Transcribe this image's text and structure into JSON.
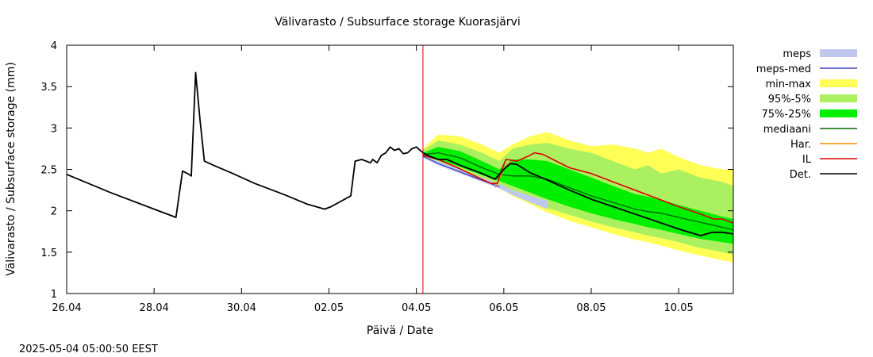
{
  "chart_data": {
    "type": "area",
    "title": "Välivarasto / Subsurface storage  Kuorasjärvi",
    "xlabel": "Päivä / Date",
    "ylabel": "Välivarasto / Subsurface storage (mm)",
    "timestamp": "2025-05-04  05:00:50 EEST",
    "x_unit": "days since 26.04",
    "xlim": [
      0,
      15.25
    ],
    "ylim": [
      1,
      4
    ],
    "x_ticks": [
      {
        "x": 0,
        "label": "26.04"
      },
      {
        "x": 2,
        "label": "28.04"
      },
      {
        "x": 4,
        "label": "30.04"
      },
      {
        "x": 6,
        "label": "02.05"
      },
      {
        "x": 8,
        "label": "04.05"
      },
      {
        "x": 10,
        "label": "06.05"
      },
      {
        "x": 12,
        "label": "08.05"
      },
      {
        "x": 14,
        "label": "10.05"
      }
    ],
    "y_ticks": [
      {
        "y": 1,
        "label": "1"
      },
      {
        "y": 1.5,
        "label": "1.5"
      },
      {
        "y": 2,
        "label": "2"
      },
      {
        "y": 2.5,
        "label": "2.5"
      },
      {
        "y": 3,
        "label": "3"
      },
      {
        "y": 3.5,
        "label": "3.5"
      },
      {
        "y": 4,
        "label": "4"
      }
    ],
    "forecast_start": 8.15,
    "legend_placement": "right",
    "legend": [
      {
        "label": "meps",
        "color": "#c0c8f0",
        "kind": "band"
      },
      {
        "label": "meps-med",
        "color": "#4040c0",
        "kind": "line"
      },
      {
        "label": "min-max",
        "color": "#ffff55",
        "kind": "band"
      },
      {
        "label": "95%-5%",
        "color": "#aaf060",
        "kind": "band"
      },
      {
        "label": "75%-25%",
        "color": "#00ee00",
        "kind": "band"
      },
      {
        "label": "mediaani",
        "color": "#006400",
        "kind": "line"
      },
      {
        "label": "Har.",
        "color": "#ff8c00",
        "kind": "line"
      },
      {
        "label": "IL",
        "color": "#dd0000",
        "kind": "line"
      },
      {
        "label": "Det.",
        "color": "#000000",
        "kind": "line"
      }
    ],
    "bands": [
      {
        "name": "min-max",
        "color": "#ffff55",
        "x": [
          8.15,
          8.5,
          9.0,
          9.5,
          9.9,
          10.2,
          10.6,
          11.0,
          11.5,
          12.0,
          12.5,
          13.0,
          13.3,
          13.6,
          14.0,
          14.5,
          15.0,
          15.25
        ],
        "upper": [
          2.75,
          2.92,
          2.9,
          2.8,
          2.7,
          2.8,
          2.9,
          2.95,
          2.85,
          2.78,
          2.8,
          2.75,
          2.7,
          2.75,
          2.65,
          2.55,
          2.5,
          2.5
        ],
        "lower": [
          2.65,
          2.55,
          2.45,
          2.35,
          2.27,
          2.18,
          2.08,
          1.98,
          1.88,
          1.8,
          1.72,
          1.65,
          1.62,
          1.58,
          1.52,
          1.46,
          1.4,
          1.38
        ]
      },
      {
        "name": "95%-5%",
        "color": "#aaf060",
        "x": [
          8.15,
          8.5,
          9.0,
          9.5,
          9.9,
          10.2,
          10.6,
          11.0,
          11.5,
          12.0,
          12.5,
          13.0,
          13.3,
          13.6,
          14.0,
          14.5,
          15.0,
          15.25
        ],
        "upper": [
          2.73,
          2.85,
          2.8,
          2.7,
          2.6,
          2.75,
          2.8,
          2.82,
          2.75,
          2.7,
          2.6,
          2.5,
          2.55,
          2.45,
          2.5,
          2.4,
          2.35,
          2.3
        ],
        "lower": [
          2.65,
          2.58,
          2.48,
          2.38,
          2.3,
          2.22,
          2.12,
          2.03,
          1.95,
          1.87,
          1.8,
          1.74,
          1.7,
          1.67,
          1.62,
          1.55,
          1.5,
          1.47
        ]
      },
      {
        "name": "75%-25%",
        "color": "#00ee00",
        "x": [
          8.15,
          8.5,
          9.0,
          9.5,
          9.9,
          10.2,
          10.6,
          11.0,
          11.5,
          12.0,
          12.5,
          13.0,
          13.3,
          13.6,
          14.0,
          14.5,
          15.0,
          15.25
        ],
        "upper": [
          2.7,
          2.77,
          2.72,
          2.6,
          2.5,
          2.62,
          2.62,
          2.6,
          2.5,
          2.4,
          2.3,
          2.2,
          2.17,
          2.13,
          2.07,
          2.0,
          1.93,
          1.9
        ],
        "lower": [
          2.66,
          2.62,
          2.53,
          2.43,
          2.36,
          2.3,
          2.22,
          2.14,
          2.05,
          1.97,
          1.9,
          1.84,
          1.8,
          1.77,
          1.72,
          1.66,
          1.62,
          1.6
        ]
      },
      {
        "name": "meps",
        "color": "#c0c8f0",
        "x": [
          8.15,
          8.5,
          9.0,
          9.5,
          9.9,
          10.2,
          10.6,
          11.0
        ],
        "upper": [
          2.66,
          2.6,
          2.5,
          2.4,
          2.32,
          2.25,
          2.18,
          2.12
        ],
        "lower": [
          2.64,
          2.55,
          2.45,
          2.35,
          2.27,
          2.19,
          2.1,
          2.02
        ]
      }
    ],
    "series": [
      {
        "name": "Det.",
        "color": "#000000",
        "width": 1.8,
        "x": [
          0,
          1,
          2,
          2.5,
          2.65,
          2.8,
          2.85,
          2.95,
          3.05,
          3.15,
          3.4,
          3.8,
          4.3,
          5.0,
          5.5,
          5.9,
          6.05,
          6.5,
          6.6,
          6.75,
          6.95,
          7.0,
          7.1,
          7.2,
          7.3,
          7.4,
          7.5,
          7.6,
          7.7,
          7.8,
          7.9,
          8.0,
          8.15,
          8.3,
          8.5,
          8.7,
          9.0,
          9.5,
          9.8,
          10.0,
          10.15,
          10.3,
          10.6,
          11.0,
          11.5,
          12.0,
          12.5,
          13.0,
          13.5,
          14.0,
          14.5,
          14.7,
          14.8,
          15.0,
          15.25
        ],
        "y": [
          2.44,
          2.22,
          2.02,
          1.92,
          2.48,
          2.44,
          2.42,
          3.67,
          3.1,
          2.6,
          2.54,
          2.45,
          2.33,
          2.19,
          2.08,
          2.02,
          2.05,
          2.18,
          2.6,
          2.62,
          2.58,
          2.62,
          2.58,
          2.67,
          2.7,
          2.77,
          2.73,
          2.75,
          2.69,
          2.7,
          2.75,
          2.77,
          2.7,
          2.66,
          2.62,
          2.62,
          2.55,
          2.45,
          2.38,
          2.5,
          2.57,
          2.56,
          2.46,
          2.37,
          2.25,
          2.14,
          2.05,
          1.96,
          1.87,
          1.78,
          1.7,
          1.73,
          1.74,
          1.74,
          1.72
        ]
      },
      {
        "name": "meps-med",
        "color": "#4040c0",
        "width": 1.3,
        "x": [
          8.15,
          8.5,
          9.0,
          9.5,
          9.9
        ],
        "y": [
          2.66,
          2.57,
          2.47,
          2.37,
          2.29
        ]
      },
      {
        "name": "mediaani",
        "color": "#006400",
        "width": 1.3,
        "x": [
          8.15,
          8.5,
          9.0,
          9.5,
          9.9,
          10.2,
          10.6,
          11.0,
          11.5,
          12.0,
          12.5,
          13.0,
          13.3,
          13.6,
          14.0,
          14.5,
          15.0,
          15.25
        ],
        "y": [
          2.68,
          2.7,
          2.64,
          2.52,
          2.44,
          2.42,
          2.42,
          2.38,
          2.28,
          2.18,
          2.1,
          2.02,
          1.99,
          1.97,
          1.92,
          1.86,
          1.8,
          1.77
        ]
      },
      {
        "name": "Har.",
        "color": "#ff8c00",
        "width": 1.3,
        "x": [
          9.8,
          9.95,
          10.05,
          10.2
        ],
        "y": [
          2.28,
          2.45,
          2.55,
          2.6
        ]
      },
      {
        "name": "IL",
        "color": "#dd0000",
        "width": 1.6,
        "x": [
          8.15,
          8.5,
          8.9,
          9.3,
          9.7,
          9.85,
          9.95,
          10.05,
          10.3,
          10.6,
          10.7,
          10.9,
          11.2,
          11.5,
          12.0,
          12.5,
          13.0,
          13.5,
          14.0,
          14.5,
          14.8,
          15.0,
          15.25
        ],
        "y": [
          2.67,
          2.62,
          2.53,
          2.43,
          2.33,
          2.33,
          2.5,
          2.62,
          2.6,
          2.67,
          2.7,
          2.68,
          2.6,
          2.52,
          2.45,
          2.35,
          2.25,
          2.15,
          2.05,
          1.96,
          1.9,
          1.9,
          1.85
        ]
      }
    ]
  }
}
